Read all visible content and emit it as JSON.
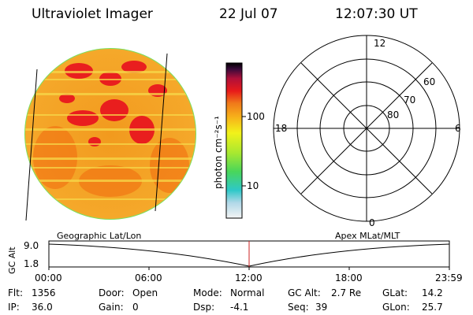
{
  "header": {
    "title": "Ultraviolet Imager",
    "date": "22 Jul 07",
    "time": "12:07:30 UT"
  },
  "colorbar": {
    "unit_label": "photon cm⁻²s⁻¹",
    "tick_labels": [
      "100",
      "10"
    ]
  },
  "polar_plot": {
    "mlt_labels": [
      "12",
      "18",
      "6",
      "0"
    ],
    "lat_labels": [
      "60",
      "70",
      "80"
    ]
  },
  "timeline": {
    "left_caption": "Geographic Lat/Lon",
    "right_caption": "Apex MLat/MLT",
    "y_axis_label": "GC Alt",
    "y_ticks": [
      "9.0",
      "1.8"
    ],
    "x_ticks": [
      "00:00",
      "06:00",
      "12:00",
      "18:00",
      "23:59"
    ]
  },
  "info": {
    "flt_label": "Flt:",
    "flt_value": "1356",
    "ip_label": "IP:",
    "ip_value": "36.0",
    "door_label": "Door:",
    "door_value": "Open",
    "gain_label": "Gain:",
    "gain_value": "0",
    "mode_label": "Mode:",
    "mode_value": "Normal",
    "dsp_label": "Dsp:",
    "dsp_value": "-4.1",
    "gcalt_label": "GC Alt:",
    "gcalt_value": "2.7 Re",
    "seq_label": "Seq:",
    "seq_value": "39",
    "glat_label": "GLat:",
    "glat_value": "14.2",
    "glon_label": "GLon:",
    "glon_value": "25.7"
  },
  "colors": {
    "disk_base": "#f5a623",
    "disk_hot": "#e8101e",
    "disk_edge": "#7be060",
    "marker": "#cc2222"
  }
}
